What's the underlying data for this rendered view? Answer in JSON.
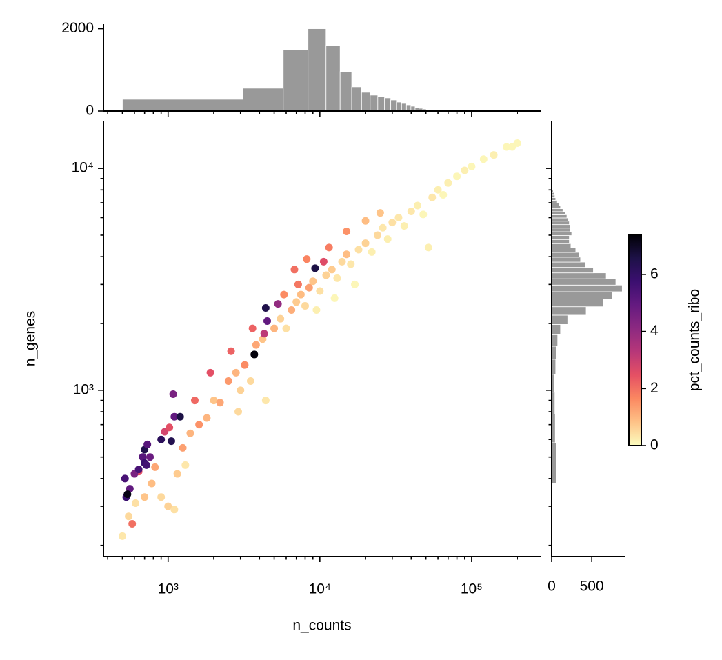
{
  "chart_data": [
    {
      "type": "scatter",
      "xlabel": "n_counts",
      "ylabel": "n_genes",
      "xscale": "log",
      "yscale": "log",
      "xlim": [
        375,
        288000
      ],
      "ylim": [
        178,
        16400
      ],
      "xticks": [
        {
          "value": 1000,
          "label": "10³"
        },
        {
          "value": 10000,
          "label": "10⁴"
        },
        {
          "value": 100000,
          "label": "10⁵"
        }
      ],
      "yticks": [
        {
          "value": 1000,
          "label": "10³"
        },
        {
          "value": 10000,
          "label": "10⁴"
        }
      ],
      "xminorticks": [
        400,
        500,
        600,
        700,
        800,
        900,
        2000,
        3000,
        4000,
        5000,
        6000,
        7000,
        8000,
        9000,
        20000,
        30000,
        40000,
        50000,
        60000,
        70000,
        80000,
        90000,
        200000
      ],
      "yminorticks": [
        200,
        300,
        400,
        500,
        600,
        700,
        800,
        900,
        2000,
        3000,
        4000,
        5000,
        6000,
        7000,
        8000,
        9000
      ],
      "x": [
        500,
        550,
        610,
        700,
        900,
        1000,
        1100,
        780,
        820,
        1150,
        1300,
        1400,
        1250,
        1600,
        1800,
        2000,
        2200,
        2500,
        2800,
        3000,
        3500,
        4400,
        4200,
        5000,
        5500,
        6000,
        6500,
        7000,
        7500,
        8000,
        8500,
        9000,
        10000,
        11000,
        12000,
        13000,
        14000,
        15000,
        16000,
        18000,
        20000,
        22000,
        24000,
        26000,
        28000,
        30000,
        33000,
        36000,
        40000,
        44000,
        48000,
        52000,
        55000,
        60000,
        65000,
        70000,
        80000,
        90000,
        100000,
        120000,
        140000,
        170000,
        200000,
        185000,
        9500,
        12500,
        17000,
        2900,
        20000,
        25000,
        3200,
        3800,
        6800,
        8200,
        11500,
        15000,
        2600,
        1900,
        1500,
        7200,
        3600,
        5800,
        580,
        640,
        950,
        1020,
        10600,
        4300,
        5300,
        520,
        530,
        560,
        600,
        640,
        680,
        700,
        720,
        760,
        700,
        730,
        900,
        1050,
        1100,
        1200,
        1080,
        4400,
        4500,
        9300,
        3700,
        540
      ],
      "y": [
        220,
        270,
        310,
        330,
        330,
        300,
        290,
        380,
        450,
        420,
        460,
        640,
        550,
        700,
        750,
        900,
        880,
        1100,
        1200,
        1000,
        1100,
        900,
        1700,
        1900,
        2100,
        1900,
        2300,
        2500,
        2700,
        2400,
        2900,
        3100,
        2800,
        3300,
        3500,
        3200,
        3800,
        4100,
        3700,
        4300,
        4600,
        4200,
        5000,
        5400,
        4800,
        5700,
        6000,
        5500,
        6400,
        6800,
        6200,
        4400,
        7400,
        8000,
        7600,
        8600,
        9200,
        9800,
        10200,
        11000,
        11500,
        12500,
        13000,
        12500,
        2300,
        2600,
        3000,
        800,
        5800,
        6300,
        1300,
        1600,
        3500,
        3900,
        4400,
        5200,
        1500,
        1200,
        900,
        3000,
        1900,
        2700,
        250,
        430,
        650,
        680,
        3800,
        1800,
        2450,
        400,
        330,
        360,
        420,
        440,
        500,
        470,
        460,
        500,
        540,
        570,
        600,
        590,
        760,
        760,
        960,
        2350,
        2050,
        3550,
        1450,
        340
      ],
      "c": [
        0.3,
        0.5,
        0.4,
        0.8,
        0.5,
        0.6,
        0.4,
        0.9,
        1.2,
        0.7,
        0.3,
        1,
        1.3,
        1.5,
        1,
        0.8,
        1.2,
        1.4,
        1,
        0.6,
        0.5,
        0.3,
        0.8,
        1,
        0.6,
        0.4,
        1.1,
        0.7,
        0.9,
        0.5,
        1.3,
        0.8,
        0.4,
        0.6,
        0.7,
        0.3,
        0.5,
        0.9,
        0.3,
        0.4,
        0.6,
        0.2,
        0.5,
        0.3,
        0.2,
        0.4,
        0.3,
        0.2,
        0.3,
        0.2,
        0.1,
        0.2,
        0.3,
        0.2,
        0.1,
        0.2,
        0.1,
        0.2,
        0.1,
        0.1,
        0.2,
        0.1,
        0.1,
        0.1,
        0.2,
        0.1,
        0.1,
        0.5,
        0.9,
        0.8,
        1.6,
        1.2,
        2,
        1.7,
        1.8,
        1.5,
        2.2,
        2.5,
        2.1,
        1.9,
        2.2,
        1.6,
        2,
        2.5,
        2.8,
        2.5,
        2.6,
        3.2,
        4,
        5.5,
        5.8,
        5,
        4.5,
        5.5,
        5.2,
        5.8,
        5.6,
        4.8,
        6.5,
        5.2,
        6.2,
        6.4,
        5,
        6.6,
        4.5,
        6.5,
        5,
        6.6,
        7.3,
        7.2
      ],
      "colorbar": {
        "label": "pct_counts_ribo",
        "lim": [
          0,
          7.4
        ],
        "ticks": [
          0,
          2,
          4,
          6
        ],
        "colorscale": [
          "#fcfdbf",
          "#fec287",
          "#fb8861",
          "#e55064",
          "#b73779",
          "#8c2981",
          "#641a80",
          "#3b0f70",
          "#1d1147",
          "#000004"
        ]
      }
    },
    {
      "type": "histogram",
      "orientation": "vertical",
      "color": "#999999",
      "bins": [
        500,
        3120,
        5740,
        8360,
        10980,
        13600,
        16220,
        18840,
        21460,
        24080,
        26700,
        29320,
        31940,
        34560,
        37180,
        39800,
        42420,
        45040,
        47660,
        50280,
        52900,
        55520,
        58140,
        60760,
        63380
      ],
      "values": [
        286,
        555,
        1496,
        2000,
        1597,
        958,
        588,
        454,
        387,
        353,
        320,
        269,
        218,
        185,
        151,
        118,
        84,
        67,
        50,
        34,
        17,
        8,
        5,
        3
      ],
      "ylim": [
        0,
        2110
      ],
      "yticks": [
        0,
        2000
      ]
    },
    {
      "type": "histogram",
      "orientation": "horizontal",
      "color": "#999999",
      "bins": [
        380,
        580,
        780,
        980,
        1180,
        1380,
        1580,
        1780,
        1980,
        2180,
        2380,
        2580,
        2780,
        2980,
        3180,
        3380,
        3580,
        3780,
        3980,
        4180,
        4380,
        4580,
        4780,
        4980,
        5180,
        5380,
        5580,
        5780,
        5980,
        6180,
        6380,
        6580,
        6780,
        6980,
        7180,
        7380,
        7580,
        7780,
        7980,
        8180,
        8380
      ],
      "values": [
        55,
        45,
        40,
        35,
        50,
        60,
        75,
        110,
        200,
        430,
        640,
        760,
        880,
        800,
        680,
        520,
        420,
        360,
        340,
        300,
        240,
        220,
        220,
        250,
        230,
        230,
        220,
        210,
        190,
        170,
        140,
        110,
        90,
        70,
        50,
        40,
        30,
        20,
        12,
        6
      ],
      "xlim": [
        0,
        920
      ],
      "xticks": [
        0,
        500
      ]
    }
  ]
}
